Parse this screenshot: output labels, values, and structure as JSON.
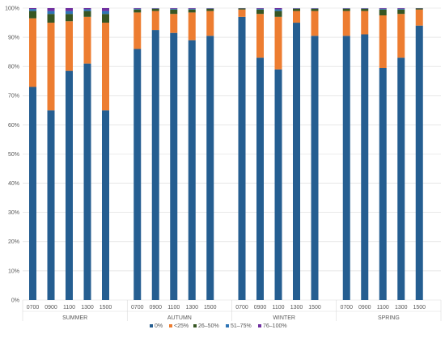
{
  "chart_data": {
    "type": "bar",
    "stacked": "percent",
    "title": "",
    "xlabel": "",
    "ylabel": "",
    "ylim": [
      0,
      100
    ],
    "y_ticks": [
      "0%",
      "10%",
      "20%",
      "30%",
      "40%",
      "50%",
      "60%",
      "70%",
      "80%",
      "90%",
      "100%"
    ],
    "grid": true,
    "legend_position": "bottom",
    "groups": [
      {
        "label": "SUMMER",
        "categories": [
          "0700",
          "0900",
          "1100",
          "1300",
          "1500"
        ]
      },
      {
        "label": "AUTUMN",
        "categories": [
          "0700",
          "0900",
          "1100",
          "1300",
          "1500"
        ]
      },
      {
        "label": "WINTER",
        "categories": [
          "0700",
          "0900",
          "1100",
          "1300",
          "1500"
        ]
      },
      {
        "label": "SPRING",
        "categories": [
          "0700",
          "0900",
          "1100",
          "1300",
          "1500"
        ]
      }
    ],
    "series": [
      {
        "name": "0%",
        "color": "#255e91",
        "values": [
          73,
          65,
          78.5,
          81,
          65,
          86,
          92.5,
          91.5,
          89,
          90.5,
          97,
          83,
          79,
          95,
          90.5,
          90.5,
          91,
          79.5,
          83,
          94
        ]
      },
      {
        "name": "<25%",
        "color": "#ed7d31",
        "values": [
          23.5,
          30,
          17,
          16,
          30,
          12.5,
          6.5,
          6.5,
          9.5,
          8.5,
          2.5,
          15,
          18,
          4,
          8.5,
          8.5,
          8,
          18,
          15,
          5.5
        ]
      },
      {
        "name": "26–50%",
        "color": "#375623",
        "values": [
          2.5,
          3,
          2.5,
          2,
          3,
          1,
          0.8,
          1.5,
          1,
          0.8,
          0.4,
          1.5,
          2,
          0.8,
          0.8,
          0.8,
          0.8,
          2,
          1.5,
          0.4
        ]
      },
      {
        "name": "51–75%",
        "color": "#2e75b6",
        "values": [
          0.7,
          1,
          1,
          0.6,
          1,
          0.3,
          0.1,
          0.3,
          0.3,
          0.1,
          0.05,
          0.3,
          0.6,
          0.1,
          0.1,
          0.1,
          0.1,
          0.3,
          0.3,
          0.05
        ]
      },
      {
        "name": "76–100%",
        "color": "#7030a0",
        "values": [
          0.3,
          1,
          1,
          0.4,
          1,
          0.2,
          0.1,
          0.2,
          0.2,
          0.1,
          0.05,
          0.2,
          0.4,
          0.1,
          0.1,
          0.1,
          0.1,
          0.2,
          0.2,
          0.05
        ]
      }
    ]
  }
}
